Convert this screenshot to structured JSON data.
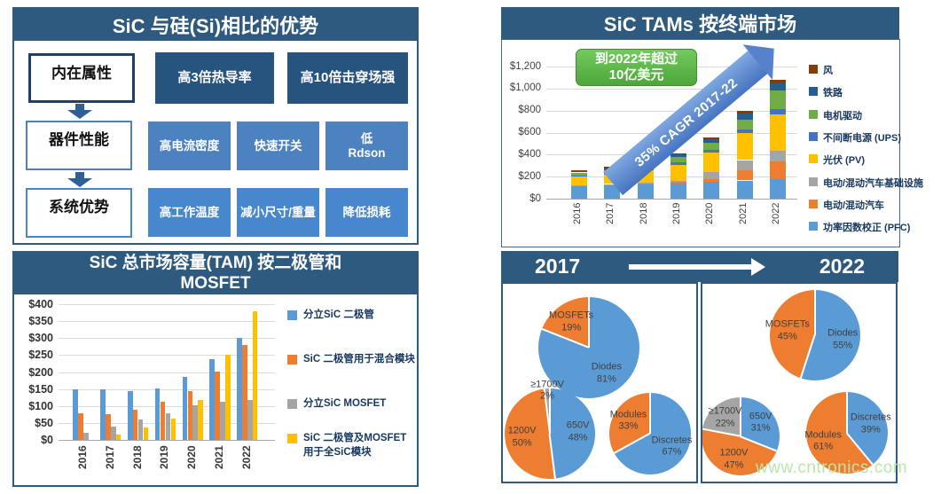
{
  "advantages": {
    "title": "SiC 与硅(Si)相比的优势",
    "rows": [
      {
        "label": "内在属性",
        "items": [
          "高3倍热导率",
          "高10倍击穿场强"
        ]
      },
      {
        "label": "器件性能",
        "items": [
          "高电流密度",
          "快速开关",
          "低\nRdson"
        ]
      },
      {
        "label": "系统优势",
        "items": [
          "高工作温度",
          "减小尺寸/重量",
          "降低损耗"
        ]
      }
    ]
  },
  "watermark": "www.cntronics.com",
  "colors": {
    "header_blue": "#2f5a80",
    "excel_blue": "#5B9BD5",
    "excel_orange": "#ED7D31",
    "excel_gray": "#A5A5A5",
    "excel_yellow": "#FFC000",
    "excel_green": "#70AD47",
    "callout_green": "#5cb64a"
  },
  "chart_data": [
    {
      "type": "bar",
      "stacked": true,
      "title": "SiC TAMs 按终端市场",
      "annotation": "到2022年超过\n10亿美元",
      "arrow_label": "35% CAGR 2017-22",
      "categories": [
        "2016",
        "2017",
        "2018",
        "2019",
        "2020",
        "2021",
        "2022"
      ],
      "series": [
        {
          "name": "功率因数校正 (PFC)",
          "color": "#5B9BD5",
          "values": [
            110,
            120,
            130,
            140,
            150,
            165,
            180
          ]
        },
        {
          "name": "电动/混动汽车",
          "color": "#ED7D31",
          "values": [
            8,
            10,
            12,
            15,
            30,
            95,
            155
          ]
        },
        {
          "name": "电动/混动汽车基础设施",
          "color": "#A5A5A5",
          "values": [
            2,
            3,
            5,
            10,
            60,
            90,
            100
          ]
        },
        {
          "name": "光伏 (PV)",
          "color": "#FFC000",
          "values": [
            80,
            85,
            110,
            145,
            180,
            245,
            330
          ]
        },
        {
          "name": "不间断电源 (UPS)",
          "color": "#4472C4",
          "values": [
            12,
            13,
            15,
            20,
            25,
            30,
            50
          ]
        },
        {
          "name": "电机驱动",
          "color": "#70AD47",
          "values": [
            25,
            28,
            35,
            45,
            60,
            90,
            165
          ]
        },
        {
          "name": "铁路",
          "color": "#255E91",
          "values": [
            14,
            18,
            22,
            25,
            35,
            55,
            70
          ]
        },
        {
          "name": "风",
          "color": "#843C0C",
          "values": [
            8,
            10,
            12,
            15,
            18,
            30,
            30
          ]
        }
      ],
      "ytick_labels": [
        "$0",
        "$200",
        "$400",
        "$600",
        "$800",
        "$1,000",
        "$1,200"
      ],
      "ylim": [
        0,
        1200
      ],
      "legend_position": "right",
      "legend_reverse": true,
      "grid": true
    },
    {
      "type": "bar",
      "stacked": false,
      "title": "SiC 总市场容量(TAM) 按二极管和\nMOSFET",
      "categories": [
        "2016",
        "2017",
        "2018",
        "2019",
        "2020",
        "2021",
        "2022"
      ],
      "series": [
        {
          "name": "分立SiC 二极管",
          "color": "#5B9BD5",
          "values": [
            148,
            148,
            143,
            153,
            187,
            238,
            301
          ]
        },
        {
          "name": "SiC 二极管用于混合模块",
          "color": "#ED7D31",
          "values": [
            78,
            75,
            90,
            112,
            145,
            201,
            280
          ]
        },
        {
          "name": "分立SiC MOSFET",
          "color": "#A5A5A5",
          "values": [
            20,
            40,
            60,
            78,
            101,
            112,
            118
          ]
        },
        {
          "name": "SiC 二极管及MOSFET\n用于全SiC模块",
          "color": "#FFC000",
          "values": [
            0,
            17,
            38,
            63,
            119,
            251,
            378
          ]
        }
      ],
      "ytick_labels": [
        "$0",
        "$50",
        "$100",
        "$150",
        "$200",
        "$250",
        "$300",
        "$350",
        "$400"
      ],
      "ylim": [
        0,
        400
      ],
      "legend_position": "right",
      "grid": true
    },
    {
      "type": "pie",
      "groups": [
        {
          "year": "2017",
          "pies": [
            {
              "name": "device-split",
              "slices": [
                {
                  "label": "Diodes",
                  "pct": 81,
                  "color": "#5B9BD5"
                },
                {
                  "label": "MOSFETs",
                  "pct": 19,
                  "color": "#ED7D31"
                }
              ]
            },
            {
              "name": "voltage-split",
              "slices": [
                {
                  "label": "650V",
                  "pct": 48,
                  "color": "#5B9BD5"
                },
                {
                  "label": "1200V",
                  "pct": 50,
                  "color": "#ED7D31"
                },
                {
                  "label": "≥1700V",
                  "pct": 2,
                  "color": "#A5A5A5"
                }
              ]
            },
            {
              "name": "package-split",
              "slices": [
                {
                  "label": "Discretes",
                  "pct": 67,
                  "color": "#5B9BD5"
                },
                {
                  "label": "Modules",
                  "pct": 33,
                  "color": "#ED7D31"
                }
              ]
            }
          ]
        },
        {
          "year": "2022",
          "pies": [
            {
              "name": "device-split",
              "slices": [
                {
                  "label": "Diodes",
                  "pct": 55,
                  "color": "#5B9BD5"
                },
                {
                  "label": "MOSFETs",
                  "pct": 45,
                  "color": "#ED7D31"
                }
              ]
            },
            {
              "name": "voltage-split",
              "slices": [
                {
                  "label": "650V",
                  "pct": 31,
                  "color": "#5B9BD5"
                },
                {
                  "label": "1200V",
                  "pct": 47,
                  "color": "#ED7D31"
                },
                {
                  "label": "≥1700V",
                  "pct": 22,
                  "color": "#A5A5A5"
                }
              ]
            },
            {
              "name": "package-split",
              "slices": [
                {
                  "label": "Discretes",
                  "pct": 39,
                  "color": "#5B9BD5"
                },
                {
                  "label": "Modules",
                  "pct": 61,
                  "color": "#ED7D31"
                }
              ]
            }
          ]
        }
      ]
    }
  ]
}
